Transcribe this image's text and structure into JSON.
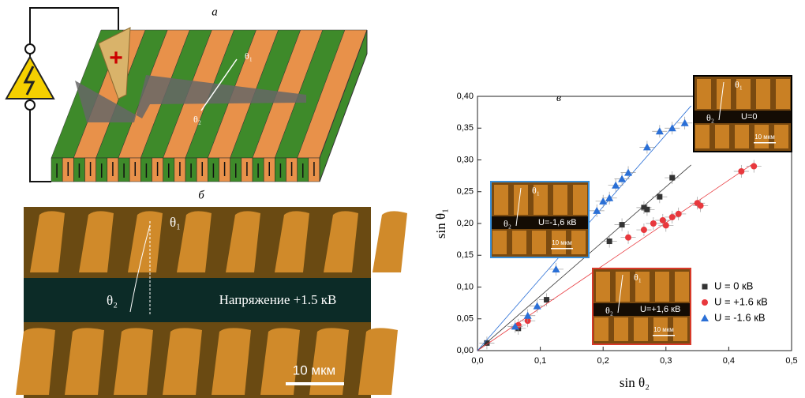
{
  "panels": {
    "a": {
      "label": "а",
      "theta1": "θ₁",
      "theta2": "θ₂"
    },
    "b": {
      "label": "б",
      "theta1": "θ₁",
      "theta2": "θ₂",
      "voltage": "Напряжение +1.5 кВ",
      "scale": "10 мкм"
    },
    "insets": [
      {
        "theta1": "θ₁",
        "theta2": "θ₂",
        "voltage": "U=0",
        "scale": "10 мкм"
      },
      {
        "theta1": "θ₁",
        "theta2": "θ₂",
        "voltage": "U=-1,6 кВ",
        "scale": "10 мкм"
      },
      {
        "theta1": "θ₁",
        "theta2": "θ₂",
        "voltage": "U=+1,6 кВ",
        "scale": "10 мкм"
      }
    ]
  },
  "chart_data": {
    "type": "scatter",
    "label": "в",
    "x_label": "sin θ₂",
    "y_label": "sin θ₁",
    "xlim": [
      0,
      0.5
    ],
    "xticks": [
      {
        "value": 0,
        "label": "0,0"
      },
      {
        "value": 0.1,
        "label": "0,1"
      },
      {
        "value": 0.2,
        "label": "0,2"
      },
      {
        "value": 0.3,
        "label": "0,3"
      },
      {
        "value": 0.4,
        "label": "0,4"
      },
      {
        "value": 0.5,
        "label": "0,5"
      }
    ],
    "ylim": [
      0,
      0.4
    ],
    "yticks": [
      {
        "value": 0,
        "label": "0,00"
      },
      {
        "value": 0.05,
        "label": "0,05"
      },
      {
        "value": 0.1,
        "label": "0,10"
      },
      {
        "value": 0.15,
        "label": "0,15"
      },
      {
        "value": 0.2,
        "label": "0,20"
      },
      {
        "value": 0.25,
        "label": "0,25"
      },
      {
        "value": 0.3,
        "label": "0,30"
      },
      {
        "value": 0.35,
        "label": "0,35"
      },
      {
        "value": 0.4,
        "label": "0,40"
      }
    ],
    "legend": "lower right",
    "series": [
      {
        "name": "U = 0 кВ",
        "color": "#333333",
        "marker": "square",
        "x_error": 0.012,
        "y_error": 0.01,
        "x": [
          0.015,
          0.065,
          0.11,
          0.21,
          0.23,
          0.265,
          0.27,
          0.29,
          0.31
        ],
        "values": [
          0.012,
          0.035,
          0.08,
          0.172,
          0.198,
          0.225,
          0.222,
          0.242,
          0.272
        ],
        "fit_line": {
          "x": [
            0,
            0.34
          ],
          "y": [
            0,
            0.292
          ]
        }
      },
      {
        "name": "U = +1.6 кВ",
        "color": "#e8383d",
        "marker": "circle",
        "x_error": 0.012,
        "y_error": 0.01,
        "x": [
          0.065,
          0.08,
          0.24,
          0.265,
          0.28,
          0.295,
          0.3,
          0.31,
          0.32,
          0.35,
          0.355,
          0.42,
          0.44
        ],
        "values": [
          0.04,
          0.047,
          0.178,
          0.19,
          0.2,
          0.205,
          0.197,
          0.21,
          0.215,
          0.232,
          0.228,
          0.282,
          0.29
        ],
        "fit_line": {
          "x": [
            0,
            0.44
          ],
          "y": [
            0,
            0.295
          ]
        }
      },
      {
        "name": "U = -1.6 кВ",
        "color": "#2a6fd6",
        "marker": "triangle",
        "x_error": 0.012,
        "y_error": 0.01,
        "x": [
          0.06,
          0.08,
          0.095,
          0.125,
          0.19,
          0.2,
          0.21,
          0.22,
          0.23,
          0.24,
          0.27,
          0.29,
          0.31,
          0.33
        ],
        "values": [
          0.038,
          0.055,
          0.07,
          0.128,
          0.22,
          0.235,
          0.24,
          0.26,
          0.27,
          0.28,
          0.32,
          0.345,
          0.35,
          0.358
        ],
        "fit_line": {
          "x": [
            0,
            0.34
          ],
          "y": [
            0,
            0.385
          ]
        }
      }
    ]
  }
}
